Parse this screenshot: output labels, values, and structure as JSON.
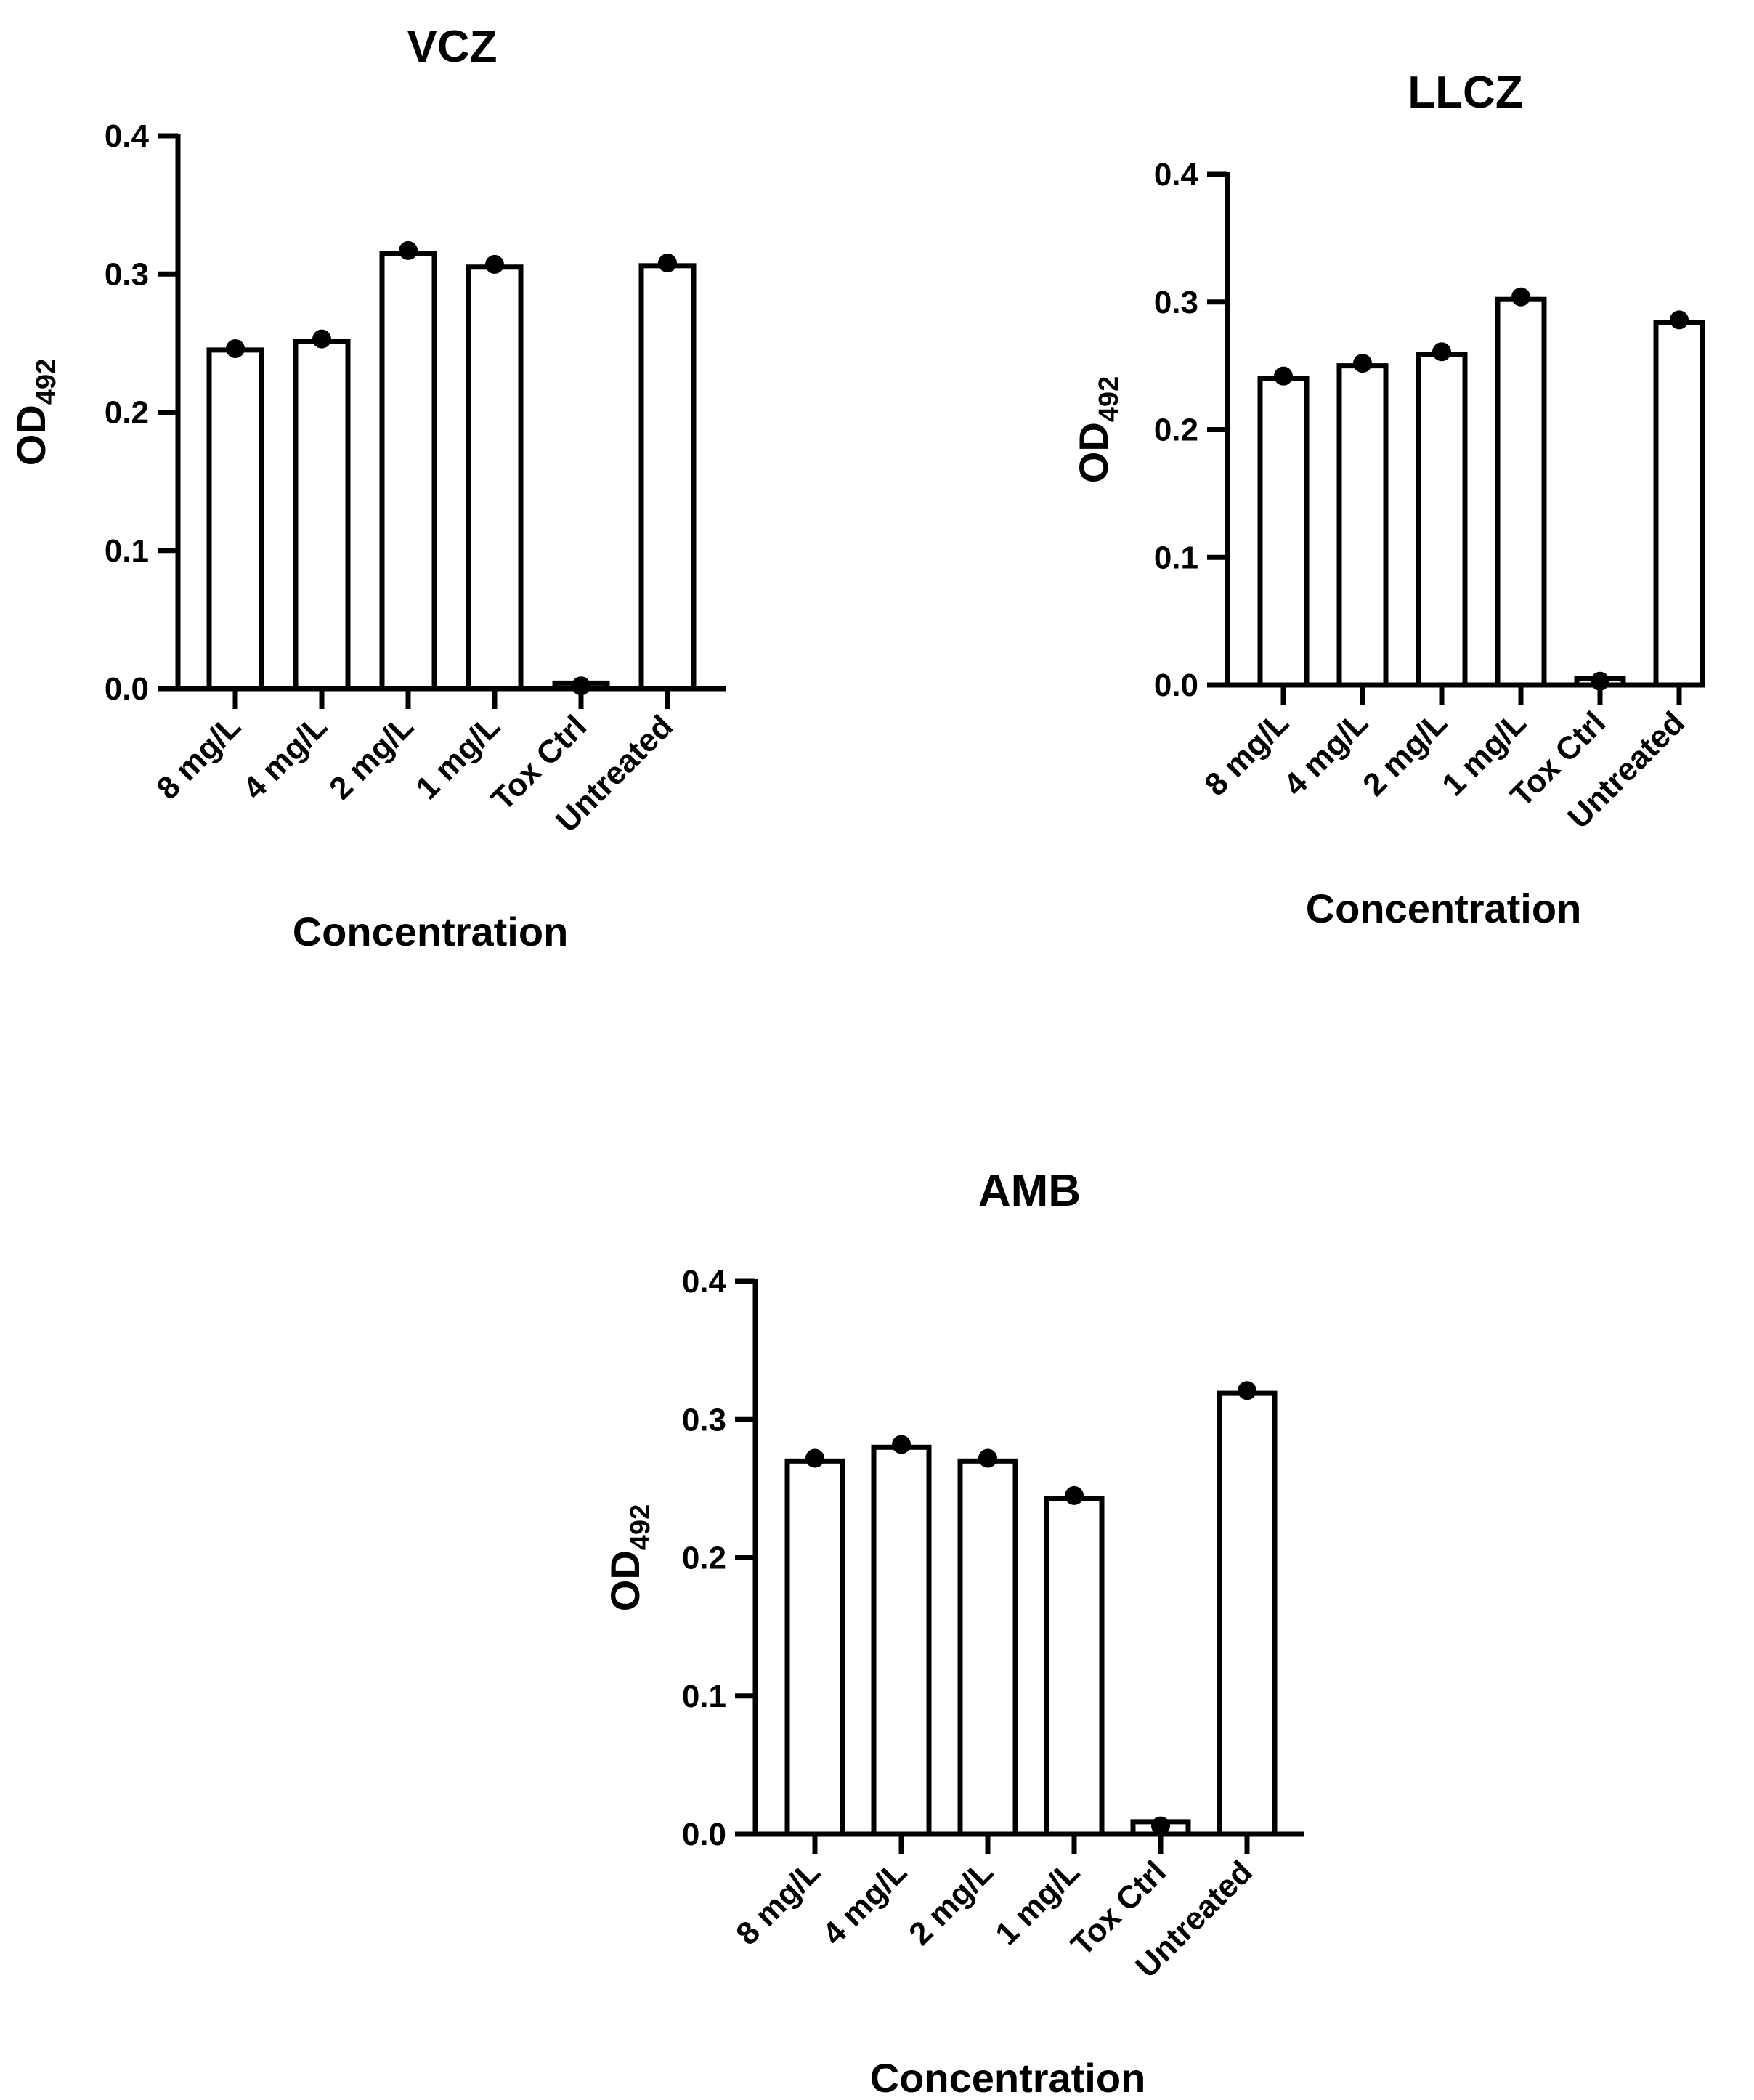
{
  "chart_data": [
    {
      "id": "vcz",
      "type": "bar",
      "title": "VCZ",
      "xlabel": "Concentration",
      "ylabel": "OD",
      "ylabel_subscript": "492",
      "ylim": [
        0,
        0.4
      ],
      "yticks": [
        "0.0",
        "0.1",
        "0.2",
        "0.3",
        "0.4"
      ],
      "categories": [
        "8 mg/L",
        "4 mg/L",
        "2 mg/L",
        "1 mg/L",
        "Tox Ctrl",
        "Untreated"
      ],
      "values": [
        0.245,
        0.251,
        0.315,
        0.305,
        0.004,
        0.306
      ],
      "points": [
        0.246,
        0.253,
        0.317,
        0.307,
        0.002,
        0.308
      ]
    },
    {
      "id": "llcz",
      "type": "bar",
      "title": "LLCZ",
      "xlabel": "Concentration",
      "ylabel": "OD",
      "ylabel_subscript": "492",
      "ylim": [
        0,
        0.4
      ],
      "yticks": [
        "0.0",
        "0.1",
        "0.2",
        "0.3",
        "0.4"
      ],
      "categories": [
        "8 mg/L",
        "4 mg/L",
        "2 mg/L",
        "1 mg/L",
        "Tox Ctrl",
        "Untreated"
      ],
      "values": [
        0.24,
        0.25,
        0.259,
        0.302,
        0.005,
        0.284
      ],
      "points": [
        0.242,
        0.252,
        0.261,
        0.304,
        0.003,
        0.286
      ]
    },
    {
      "id": "amb",
      "type": "bar",
      "title": "AMB",
      "xlabel": "Concentration",
      "ylabel": "OD",
      "ylabel_subscript": "492",
      "ylim": [
        0,
        0.4
      ],
      "yticks": [
        "0.0",
        "0.1",
        "0.2",
        "0.3",
        "0.4"
      ],
      "categories": [
        "8 mg/L",
        "4 mg/L",
        "2 mg/L",
        "1 mg/L",
        "Tox Ctrl",
        "Untreated"
      ],
      "values": [
        0.27,
        0.28,
        0.27,
        0.243,
        0.009,
        0.319
      ],
      "points": [
        0.272,
        0.282,
        0.272,
        0.245,
        0.006,
        0.321
      ]
    }
  ]
}
